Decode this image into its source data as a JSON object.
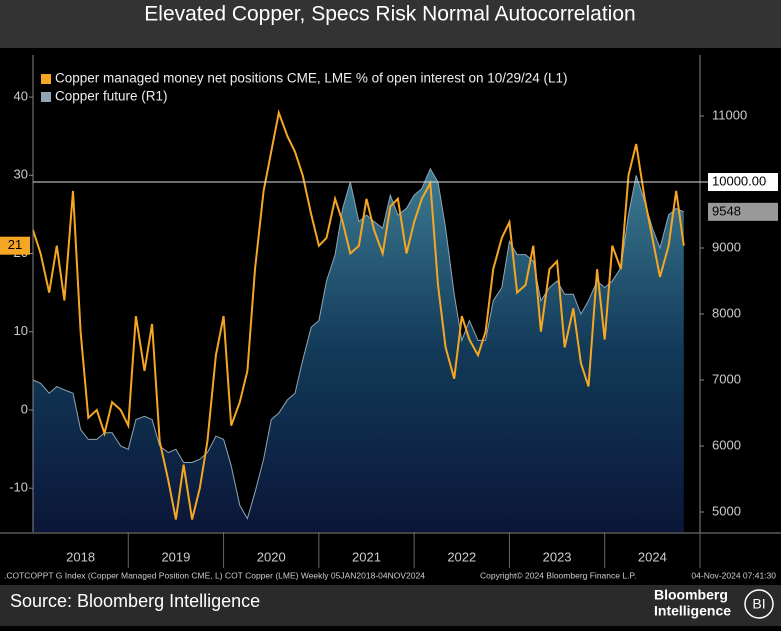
{
  "header": {
    "title": "Elevated Copper, Specs Risk Normal Autocorrelation"
  },
  "chart_data": {
    "type": "line",
    "xlim": [
      2018,
      2025
    ],
    "xticks": [
      {
        "value": 2018.5,
        "label": "2018"
      },
      {
        "value": 2019.5,
        "label": "2019"
      },
      {
        "value": 2020.5,
        "label": "2020"
      },
      {
        "value": 2021.5,
        "label": "2021"
      },
      {
        "value": 2022.5,
        "label": "2022"
      },
      {
        "value": 2023.5,
        "label": "2023"
      },
      {
        "value": 2024.5,
        "label": "2024"
      }
    ],
    "ylim": [
      -15.6,
      44.1
    ],
    "yticks": [
      -10,
      0,
      10,
      20,
      30,
      40
    ],
    "y2lim": [
      4697,
      11773
    ],
    "y2ticks": [
      5000,
      6000,
      7000,
      8000,
      9000,
      10000,
      11000
    ],
    "reference_line": {
      "value": 10000,
      "label": "10000.00",
      "axis": "y2"
    },
    "x": [
      2018.0,
      2018.08,
      2018.17,
      2018.25,
      2018.33,
      2018.42,
      2018.5,
      2018.58,
      2018.67,
      2018.75,
      2018.83,
      2018.92,
      2019.0,
      2019.08,
      2019.17,
      2019.25,
      2019.33,
      2019.42,
      2019.5,
      2019.58,
      2019.67,
      2019.75,
      2019.83,
      2019.92,
      2020.0,
      2020.08,
      2020.17,
      2020.25,
      2020.33,
      2020.42,
      2020.5,
      2020.58,
      2020.67,
      2020.75,
      2020.83,
      2020.92,
      2021.0,
      2021.08,
      2021.17,
      2021.25,
      2021.33,
      2021.42,
      2021.5,
      2021.58,
      2021.67,
      2021.75,
      2021.83,
      2021.92,
      2022.0,
      2022.08,
      2022.17,
      2022.25,
      2022.33,
      2022.42,
      2022.5,
      2022.58,
      2022.67,
      2022.75,
      2022.83,
      2022.92,
      2023.0,
      2023.08,
      2023.17,
      2023.25,
      2023.33,
      2023.42,
      2023.5,
      2023.58,
      2023.67,
      2023.75,
      2023.83,
      2023.92,
      2024.0,
      2024.08,
      2024.17,
      2024.25,
      2024.33,
      2024.42,
      2024.5,
      2024.58,
      2024.67,
      2024.75,
      2024.83
    ],
    "series": [
      {
        "name": "Copper managed money net positions CME, LME % of open interest on 10/29/24 (L1)",
        "color": "#f5a623",
        "values": [
          23,
          20,
          15,
          21,
          14,
          28,
          10,
          -1,
          0,
          -3,
          1,
          0,
          -2,
          12,
          5,
          11,
          -4,
          -9,
          -14,
          -7,
          -14,
          -10,
          -4,
          7,
          12,
          -2,
          1,
          5,
          18,
          28,
          33,
          38,
          35,
          33,
          30,
          25,
          21,
          22,
          27,
          24,
          20,
          21,
          27,
          23,
          20,
          26,
          27,
          20,
          24,
          27,
          29,
          16,
          8,
          4,
          12,
          9,
          7,
          10,
          18,
          22,
          24,
          15,
          16,
          21,
          10,
          18,
          19,
          8,
          13,
          6,
          3,
          18,
          9,
          21,
          18,
          30,
          34,
          27,
          22,
          17,
          21,
          28,
          21
        ]
      },
      {
        "name": "Copper future (R1)",
        "color": "#8fa5b5",
        "axis": "y2",
        "values": [
          7000,
          6950,
          6800,
          6900,
          6850,
          6800,
          6250,
          6100,
          6100,
          6200,
          6200,
          6000,
          5950,
          6400,
          6450,
          6400,
          6000,
          5900,
          5950,
          5750,
          5750,
          5800,
          5900,
          6150,
          6100,
          5700,
          5100,
          4900,
          5300,
          5800,
          6400,
          6500,
          6700,
          6800,
          7300,
          7800,
          7900,
          8500,
          8900,
          9600,
          10000,
          9400,
          9500,
          9400,
          9300,
          9800,
          9500,
          9600,
          9800,
          9900,
          10200,
          10000,
          9300,
          8300,
          7600,
          7900,
          7600,
          7600,
          8200,
          8400,
          9100,
          8900,
          8900,
          8800,
          8200,
          8400,
          8500,
          8300,
          8300,
          8000,
          8200,
          8500,
          8400,
          8500,
          8700,
          9500,
          10100,
          9700,
          9300,
          9000,
          9500,
          9600,
          9548
        ]
      }
    ]
  },
  "footer": {
    "note": ".COTCOPPT G Index (Copper Managed Position CME, L) COT Copper (LME)  Weekly 05JAN2018-04NOV2024",
    "copyright": "Copyright© 2024 Bloomberg Finance L.P.",
    "timestamp": "04-Nov-2024 07:41:30",
    "source": "Source: Bloomberg Intelligence",
    "logo_line1": "Bloomberg",
    "logo_line2": "Intelligence",
    "logo_badge": "BI"
  }
}
